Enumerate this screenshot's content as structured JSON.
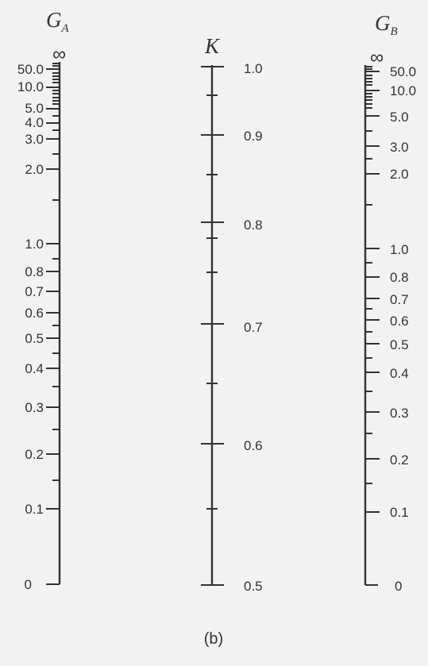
{
  "figure": {
    "caption": "(b)",
    "background": "#f2f2f0",
    "ink": "#333333"
  },
  "scales": {
    "GA": {
      "title_letter": "G",
      "title_subscript": "A",
      "infinity_mark": "∞",
      "labels": [
        "50.0",
        "10.0",
        "5.0",
        "4.0",
        "3.0",
        "2.0",
        "1.0",
        "0.8",
        "0.7",
        "0.6",
        "0.5",
        "0.4",
        "0.3",
        "0.2",
        "0.1",
        "0"
      ]
    },
    "K": {
      "title": "K",
      "labels": [
        "1.0",
        "0.9",
        "0.8",
        "0.7",
        "0.6",
        "0.5"
      ]
    },
    "GB": {
      "title_letter": "G",
      "title_subscript": "B",
      "infinity_mark": "∞",
      "labels": [
        "50.0",
        "10.0",
        "5.0",
        "3.0",
        "2.0",
        "1.0",
        "0.8",
        "0.7",
        "0.6",
        "0.5",
        "0.4",
        "0.3",
        "0.2",
        "0.1",
        "0"
      ]
    }
  }
}
